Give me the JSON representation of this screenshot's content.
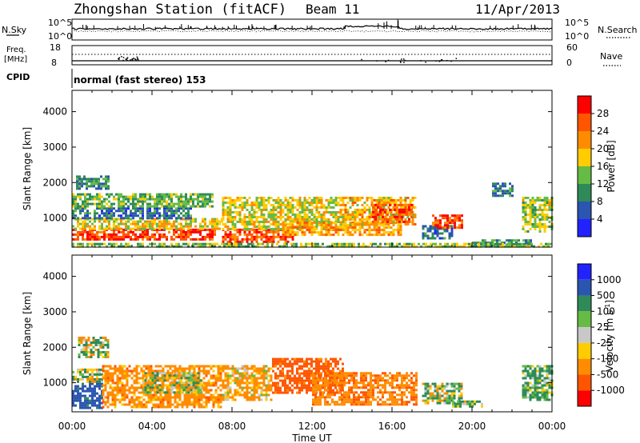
{
  "header": {
    "station": "Zhongshan Station (fitACF)",
    "beam": "Beam 11",
    "date": "11/Apr/2013"
  },
  "strip_labels": {
    "nsky": "N.Sky",
    "nsky_range_top": "10^5",
    "nsky_range_bottom": "10^0",
    "nsearch": "N.Search",
    "nsearch_range_top": "10^5",
    "nsearch_range_bottom": "10^0",
    "freq_line1": "Freq.",
    "freq_line2": "[MHz]",
    "freq_range_top": "18",
    "freq_range_bottom": "8",
    "nave": "Nave",
    "nave_range_top": "60",
    "nave_range_bottom": "0",
    "cpid": "CPID",
    "cpid_text": "normal (fast stereo) 153"
  },
  "colors": {
    "power_scale": [
      "#2222ff",
      "#2a55b0",
      "#2e8b57",
      "#66bb44",
      "#ffcc00",
      "#ff8c00",
      "#ff5500",
      "#ff0000"
    ],
    "velocity_scale": [
      "#ff0000",
      "#ff5500",
      "#ff8c00",
      "#ffcc00",
      "#c8c8c8",
      "#66bb44",
      "#2e8b57",
      "#2a55b0",
      "#2222ff"
    ]
  },
  "chart_data": [
    {
      "type": "heatmap",
      "title": "",
      "xlabel": "Time UT",
      "ylabel": "Slant Range [km]",
      "x_ticks": [
        "00:00",
        "04:00",
        "08:00",
        "12:00",
        "16:00",
        "20:00",
        "00:00"
      ],
      "x_range_hours": [
        0,
        24
      ],
      "ylim": [
        180,
        4600
      ],
      "y_ticks": [
        1000,
        2000,
        3000,
        4000
      ],
      "colorbar": {
        "label": "Power [dB]",
        "ticks": [
          "4",
          "8",
          "12",
          "16",
          "20",
          "24",
          "28"
        ],
        "range": [
          0,
          32
        ]
      },
      "regions": [
        {
          "t0": 0.0,
          "t1": 7.2,
          "r0": 400,
          "r1": 700,
          "v": 28
        },
        {
          "t0": 0.0,
          "t1": 7.5,
          "r0": 700,
          "r1": 1000,
          "v": 18
        },
        {
          "t0": 0.0,
          "t1": 6.0,
          "r0": 1000,
          "r1": 1300,
          "v": 8
        },
        {
          "t0": 0.0,
          "t1": 7.0,
          "r0": 1300,
          "r1": 1700,
          "v": 13
        },
        {
          "t0": 0.2,
          "t1": 1.8,
          "r0": 1800,
          "r1": 2200,
          "v": 10
        },
        {
          "t0": 7.5,
          "t1": 11.0,
          "r0": 300,
          "r1": 700,
          "v": 27
        },
        {
          "t0": 7.5,
          "t1": 13.5,
          "r0": 700,
          "r1": 1600,
          "v": 17
        },
        {
          "t0": 10.5,
          "t1": 16.5,
          "r0": 500,
          "r1": 900,
          "v": 21
        },
        {
          "t0": 13.5,
          "t1": 17.2,
          "r0": 800,
          "r1": 1600,
          "v": 20
        },
        {
          "t0": 15.0,
          "t1": 17.0,
          "r0": 900,
          "r1": 1400,
          "v": 26
        },
        {
          "t0": 17.5,
          "t1": 19.0,
          "r0": 400,
          "r1": 800,
          "v": 8
        },
        {
          "t0": 18.0,
          "t1": 19.5,
          "r0": 700,
          "r1": 1100,
          "v": 27
        },
        {
          "t0": 21.0,
          "t1": 22.0,
          "r0": 1600,
          "r1": 2000,
          "v": 9
        },
        {
          "t0": 22.5,
          "t1": 24.0,
          "r0": 600,
          "r1": 1600,
          "v": 16
        },
        {
          "t0": 20.0,
          "t1": 23.0,
          "r0": 250,
          "r1": 400,
          "v": 10
        },
        {
          "t0": 0.0,
          "t1": 24.0,
          "r0": 180,
          "r1": 300,
          "v": 14
        }
      ]
    },
    {
      "type": "heatmap",
      "title": "",
      "xlabel": "Time UT",
      "ylabel": "Slant Range [km]",
      "x_ticks": [
        "00:00",
        "04:00",
        "08:00",
        "12:00",
        "16:00",
        "20:00",
        "00:00"
      ],
      "x_range_hours": [
        0,
        24
      ],
      "ylim": [
        180,
        4600
      ],
      "y_ticks": [
        1000,
        2000,
        3000,
        4000
      ],
      "colorbar": {
        "label": "Velocity [m s^-1]",
        "ticks": [
          "1000",
          "500",
          "100",
          "25",
          "-25",
          "-100",
          "-500",
          "-1000"
        ],
        "range": [
          -1200,
          1200
        ]
      },
      "regions": [
        {
          "t0": 0.0,
          "t1": 1.5,
          "r0": 300,
          "r1": 1000,
          "v": 700
        },
        {
          "t0": 0.0,
          "t1": 1.5,
          "r0": 1000,
          "r1": 1400,
          "v": 80
        },
        {
          "t0": 0.3,
          "t1": 1.8,
          "r0": 1700,
          "r1": 2300,
          "v": 0
        },
        {
          "t0": 1.5,
          "t1": 7.5,
          "r0": 300,
          "r1": 1500,
          "v": -300
        },
        {
          "t0": 3.5,
          "t1": 6.5,
          "r0": 700,
          "r1": 1300,
          "v": 0
        },
        {
          "t0": 7.5,
          "t1": 10.0,
          "r0": 500,
          "r1": 1500,
          "v": -200
        },
        {
          "t0": 10.0,
          "t1": 13.5,
          "r0": 700,
          "r1": 1700,
          "v": -700
        },
        {
          "t0": 12.0,
          "t1": 17.2,
          "r0": 400,
          "r1": 1300,
          "v": -400
        },
        {
          "t0": 17.5,
          "t1": 19.5,
          "r0": 400,
          "r1": 1000,
          "v": 60
        },
        {
          "t0": 19.0,
          "t1": 20.5,
          "r0": 300,
          "r1": 500,
          "v": 120
        },
        {
          "t0": 22.5,
          "t1": 24.0,
          "r0": 500,
          "r1": 1500,
          "v": 150
        }
      ]
    }
  ]
}
